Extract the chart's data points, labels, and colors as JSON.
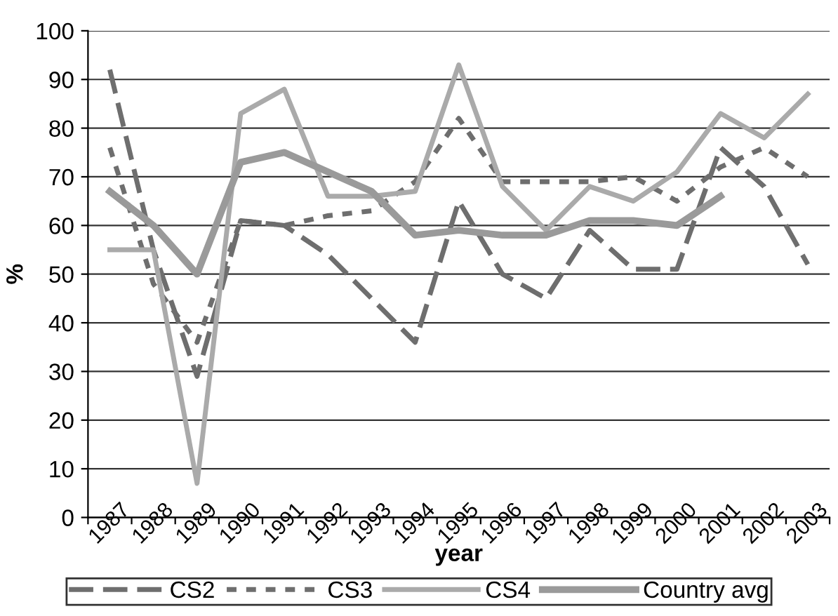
{
  "chart_data": {
    "type": "line",
    "xlabel": "year",
    "ylabel": "%",
    "categories": [
      "1987",
      "1988",
      "1989",
      "1990",
      "1991",
      "1992",
      "1993",
      "1994",
      "1995",
      "1996",
      "1997",
      "1998",
      "1999",
      "2000",
      "2001",
      "2002",
      "2003"
    ],
    "ylim": [
      0,
      100
    ],
    "yticks": [
      0,
      10,
      20,
      30,
      40,
      50,
      60,
      70,
      80,
      90,
      100
    ],
    "grid": "y",
    "legend": "bottom",
    "marker": "none",
    "series": [
      {
        "name": "CS2",
        "color": "#6e6e6e",
        "line_style": "dashed",
        "values": [
          92,
          55,
          29,
          61,
          60,
          54,
          45,
          36,
          65,
          50,
          45,
          59,
          51,
          51,
          76,
          68,
          52
        ]
      },
      {
        "name": "CS3",
        "color": "#6e6e6e",
        "line_style": "dotted",
        "values": [
          76,
          48,
          36,
          61,
          60,
          62,
          63,
          69,
          82,
          69,
          69,
          69,
          70,
          65,
          72,
          76,
          70
        ]
      },
      {
        "name": "CS4",
        "color": "#aaaaaa",
        "line_style": "solid",
        "values": [
          55,
          55,
          7,
          83,
          88,
          66,
          66,
          67,
          93,
          68,
          59,
          68,
          65,
          71,
          83,
          78,
          87
        ]
      },
      {
        "name": "Country avg",
        "color": "#9a9a9a",
        "line_style": "solid",
        "values": [
          67,
          60,
          50,
          73,
          75,
          71,
          67,
          58,
          59,
          58,
          58,
          61,
          61,
          60,
          66,
          null,
          null
        ]
      }
    ]
  }
}
